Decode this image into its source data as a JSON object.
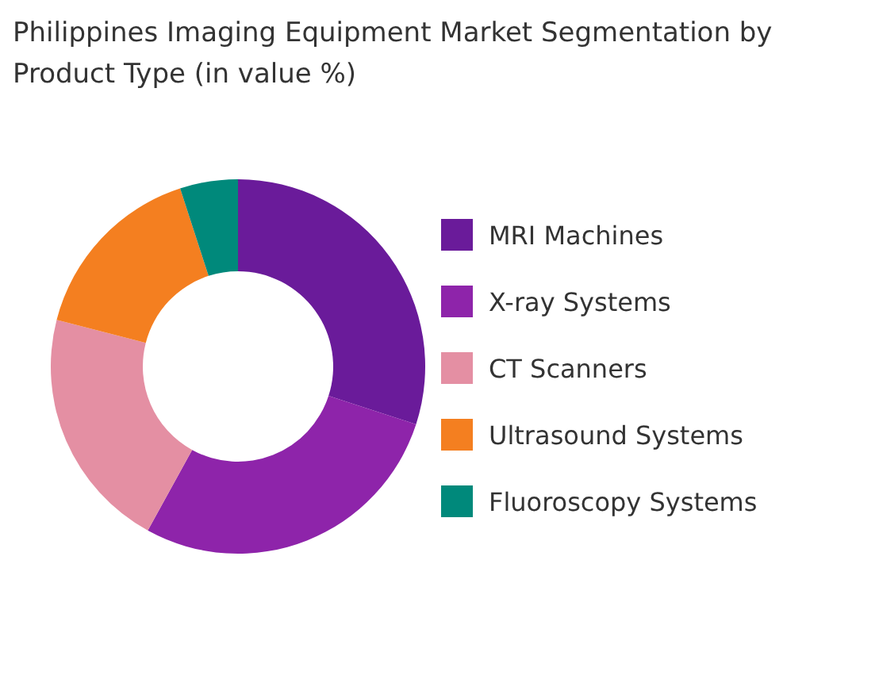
{
  "chart_data": {
    "type": "donut",
    "title": "Philippines Imaging Equipment Market Segmentation by Product Type (in value %)",
    "categories": [
      "MRI Machines",
      "X-ray Systems",
      "CT Scanners",
      "Ultrasound Systems",
      "Fluoroscopy Systems"
    ],
    "values": [
      30,
      28,
      21,
      16,
      5
    ],
    "colors": [
      "#6a1b9a",
      "#8e24aa",
      "#e48fa3",
      "#f47f20",
      "#00897b"
    ],
    "legend": "right"
  }
}
